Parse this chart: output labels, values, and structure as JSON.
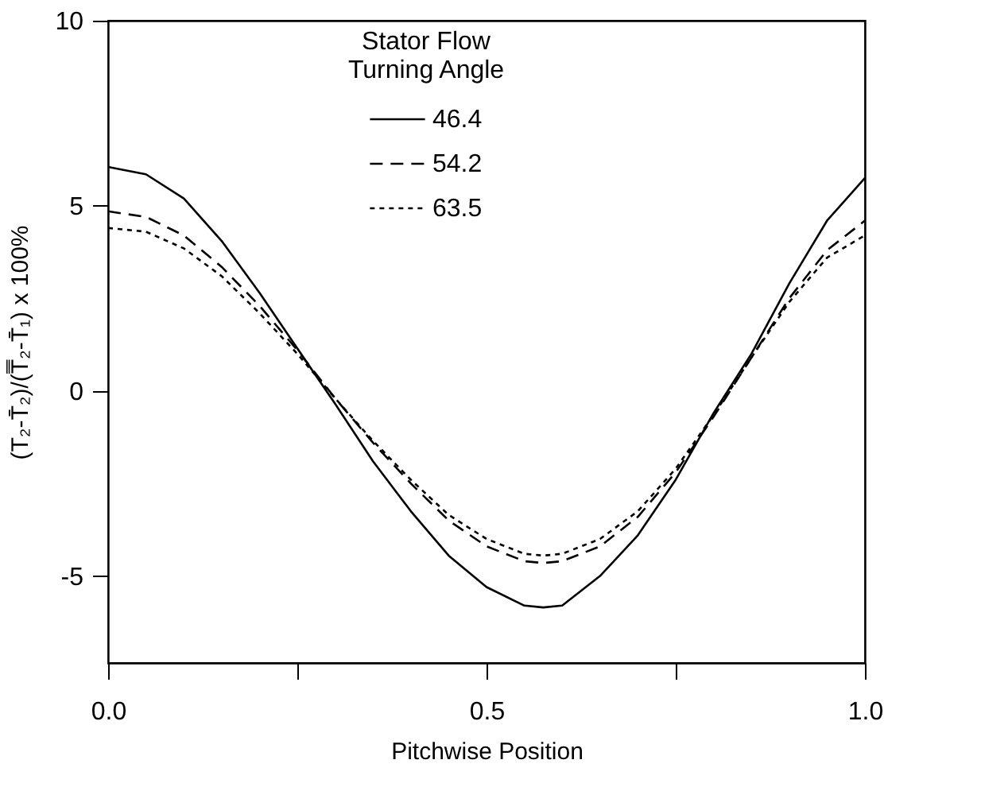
{
  "chart_data": {
    "type": "line",
    "xlabel": "Pitchwise Position",
    "ylabel": "(T₂-T̄₂)/(T̿₂-T̄₁) x 100%",
    "legend_title": "Stator Flow\nTurning Angle",
    "x": [
      0,
      0.05,
      0.1,
      0.15,
      0.2,
      0.25,
      0.3,
      0.35,
      0.4,
      0.45,
      0.5,
      0.55,
      0.575,
      0.6,
      0.65,
      0.7,
      0.75,
      0.8,
      0.85,
      0.9,
      0.95,
      1
    ],
    "series": [
      {
        "name": "46.4",
        "color": "#000000",
        "line_style": "solid",
        "values": [
          6.05,
          5.85,
          5.2,
          4.05,
          2.65,
          1.15,
          -0.35,
          -1.9,
          -3.25,
          -4.45,
          -5.3,
          -5.8,
          -5.85,
          -5.8,
          -5.0,
          -3.9,
          -2.4,
          -0.6,
          1.0,
          2.9,
          4.6,
          5.75
        ]
      },
      {
        "name": "54.2",
        "color": "#000000",
        "line_style": "dashed",
        "values": [
          4.85,
          4.7,
          4.2,
          3.35,
          2.3,
          1.1,
          -0.2,
          -1.4,
          -2.5,
          -3.5,
          -4.2,
          -4.6,
          -4.65,
          -4.6,
          -4.2,
          -3.4,
          -2.2,
          -0.7,
          0.9,
          2.5,
          3.8,
          4.6
        ]
      },
      {
        "name": "63.5",
        "color": "#000000",
        "line_style": "dotted",
        "values": [
          4.4,
          4.3,
          3.85,
          3.1,
          2.1,
          1.0,
          -0.2,
          -1.35,
          -2.4,
          -3.35,
          -4.0,
          -4.4,
          -4.45,
          -4.4,
          -4.0,
          -3.25,
          -2.1,
          -0.65,
          0.9,
          2.4,
          3.6,
          4.2
        ]
      }
    ],
    "xlim": [
      0,
      1
    ],
    "xticks": [
      {
        "value": 0,
        "label": "0.0"
      },
      {
        "value": 0.25,
        "label": null
      },
      {
        "value": 0.5,
        "label": "0.5"
      },
      {
        "value": 0.75,
        "label": null
      },
      {
        "value": 1,
        "label": "1.0"
      }
    ],
    "ylim": [
      -7.35,
      10
    ],
    "yticks": [
      -5,
      0,
      5,
      10
    ],
    "grid": false,
    "legend": "top",
    "marker": "none"
  }
}
